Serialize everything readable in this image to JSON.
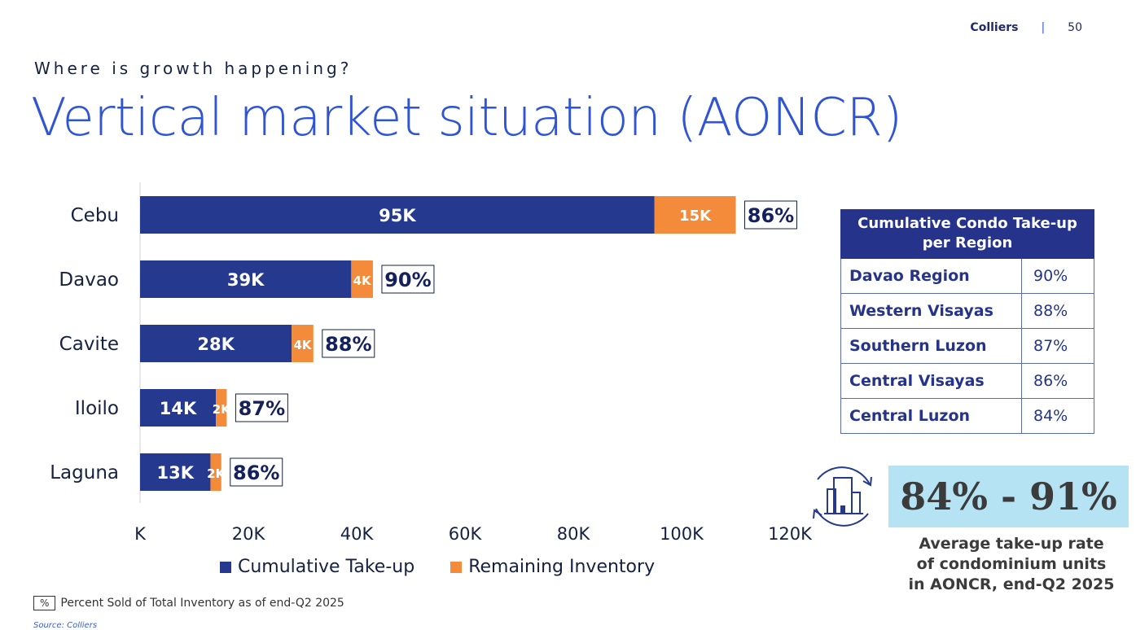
{
  "header": {
    "brand": "Colliers",
    "separator": "|",
    "page_number": "50"
  },
  "kicker": "Where is growth happening?",
  "title": "Vertical market situation (AONCR)",
  "chart_data": {
    "type": "bar",
    "orientation": "horizontal",
    "stacked": true,
    "categories": [
      "Cebu",
      "Davao",
      "Cavite",
      "Iloilo",
      "Laguna"
    ],
    "series": [
      {
        "name": "Cumulative Take-up",
        "values": [
          95000,
          39000,
          28000,
          14000,
          13000
        ],
        "labels": [
          "95K",
          "39K",
          "28K",
          "14K",
          "13K"
        ],
        "color": "#25398e"
      },
      {
        "name": "Remaining Inventory",
        "values": [
          15000,
          4000,
          4000,
          2000,
          2000
        ],
        "labels": [
          "15K",
          "4K",
          "4K",
          "2K",
          "2K"
        ],
        "color": "#f48b3a"
      }
    ],
    "percent_sold": [
      "86%",
      "90%",
      "88%",
      "87%",
      "86%"
    ],
    "xlim": [
      0,
      120000
    ],
    "xticks": [
      0,
      20000,
      40000,
      60000,
      80000,
      100000,
      120000
    ],
    "xtick_labels": [
      "K",
      "20K",
      "40K",
      "60K",
      "80K",
      "100K",
      "120K"
    ],
    "grid": false,
    "legend_position": "bottom"
  },
  "legend": {
    "take_up": "Cumulative Take-up",
    "inventory": "Remaining Inventory"
  },
  "footnote": {
    "box": "%",
    "text": "Percent Sold of Total Inventory as of end-Q2 2025"
  },
  "source": "Source: Colliers",
  "region_table": {
    "header": "Cumulative Condo Take-up per Region",
    "rows": [
      {
        "region": "Davao Region",
        "pct": "90%"
      },
      {
        "region": "Western Visayas",
        "pct": "88%"
      },
      {
        "region": "Southern Luzon",
        "pct": "87%"
      },
      {
        "region": "Central Visayas",
        "pct": "86%"
      },
      {
        "region": "Central Luzon",
        "pct": "84%"
      }
    ]
  },
  "highlight": {
    "range": "84% - 91%",
    "caption_lines": [
      "Average take-up rate",
      "of condominium units",
      "in AONCR, end-Q2 2025"
    ],
    "icon": "building-cycle-icon"
  },
  "colors": {
    "navy": "#25398e",
    "orange": "#f48b3a",
    "title_blue": "#2f54d6",
    "highlight_bg": "#b6e3f3"
  }
}
